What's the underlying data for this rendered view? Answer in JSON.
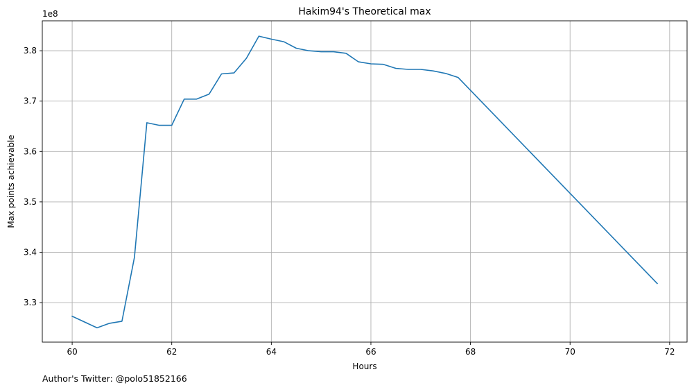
{
  "chart_data": {
    "type": "line",
    "title": "Hakim94's Theoretical max",
    "xlabel": "Hours",
    "ylabel": "Max points achievable",
    "y_offset_label": "1e8",
    "xlim": [
      59.4,
      72.35
    ],
    "ylim": [
      3.2216,
      3.8594
    ],
    "x_ticks": [
      60,
      62,
      64,
      66,
      68,
      70,
      72
    ],
    "y_ticks": [
      3.3,
      3.4,
      3.5,
      3.6,
      3.7,
      3.8
    ],
    "grid": true,
    "series": [
      {
        "color": "#1f77b4",
        "points": [
          [
            60.0,
            3.273
          ],
          [
            60.5,
            3.25
          ],
          [
            60.75,
            3.259
          ],
          [
            61.0,
            3.263
          ],
          [
            61.25,
            3.39
          ],
          [
            61.5,
            3.657
          ],
          [
            61.75,
            3.652
          ],
          [
            62.0,
            3.652
          ],
          [
            62.25,
            3.704
          ],
          [
            62.5,
            3.704
          ],
          [
            62.75,
            3.714
          ],
          [
            63.0,
            3.754
          ],
          [
            63.25,
            3.756
          ],
          [
            63.5,
            3.785
          ],
          [
            63.75,
            3.829
          ],
          [
            64.0,
            3.823
          ],
          [
            64.25,
            3.818
          ],
          [
            64.5,
            3.805
          ],
          [
            64.75,
            3.8
          ],
          [
            65.0,
            3.798
          ],
          [
            65.25,
            3.798
          ],
          [
            65.5,
            3.795
          ],
          [
            65.75,
            3.778
          ],
          [
            66.0,
            3.774
          ],
          [
            66.25,
            3.773
          ],
          [
            66.5,
            3.765
          ],
          [
            66.75,
            3.763
          ],
          [
            67.0,
            3.763
          ],
          [
            67.25,
            3.76
          ],
          [
            67.5,
            3.755
          ],
          [
            67.75,
            3.747
          ],
          [
            71.75,
            3.338
          ]
        ]
      }
    ]
  },
  "footer": {
    "credit": "Author's Twitter: @polo51852166"
  }
}
